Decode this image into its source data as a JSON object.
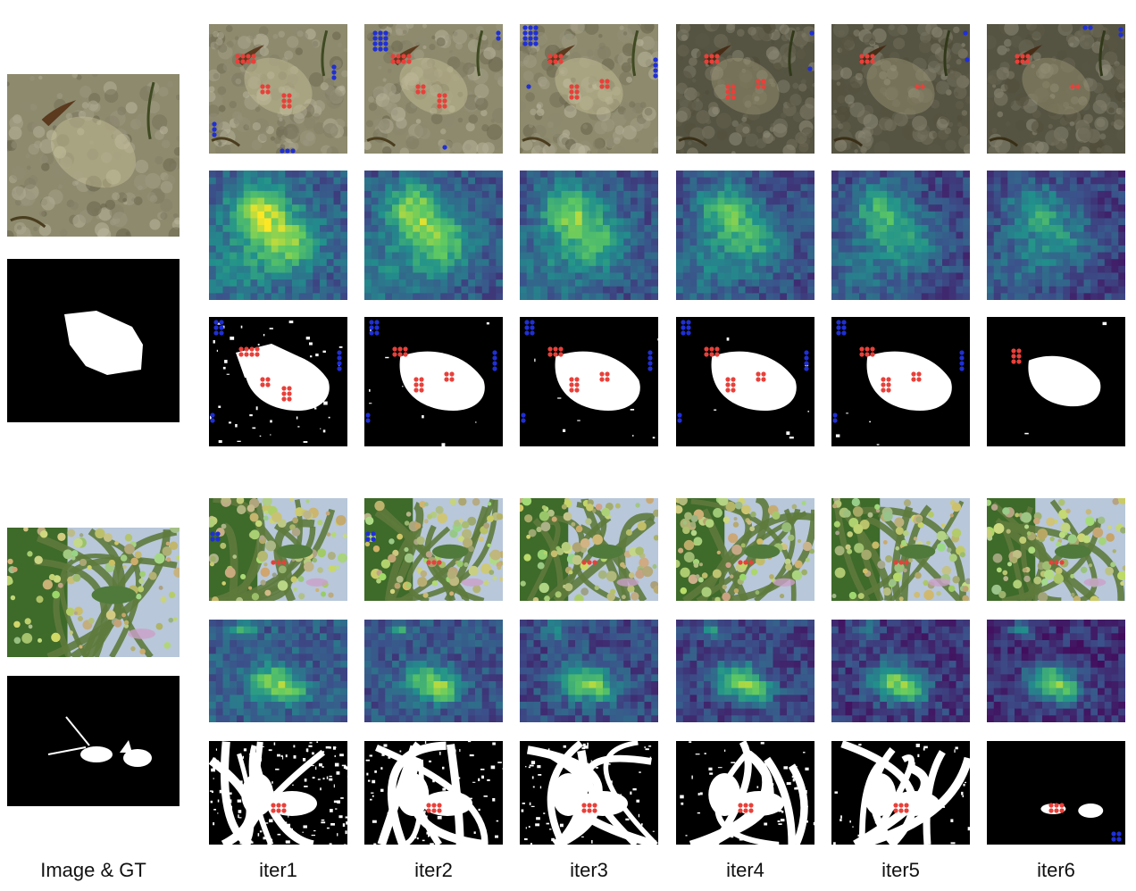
{
  "figure": {
    "column_labels": [
      "Image & GT",
      "iter1",
      "iter2",
      "iter3",
      "iter4",
      "iter5",
      "iter6"
    ]
  },
  "colors": {
    "positive_point": "#e8403a",
    "negative_point": "#1f2fd6",
    "mask_fg": "#ffffff",
    "mask_bg": "#000000",
    "heatmap_low": "#440154",
    "heatmap_mid": "#21918c",
    "heatmap_high": "#fde725"
  },
  "examples": [
    {
      "subject": "flatfish-on-sand"
    },
    {
      "subject": "insect-on-flower-buds"
    }
  ]
}
